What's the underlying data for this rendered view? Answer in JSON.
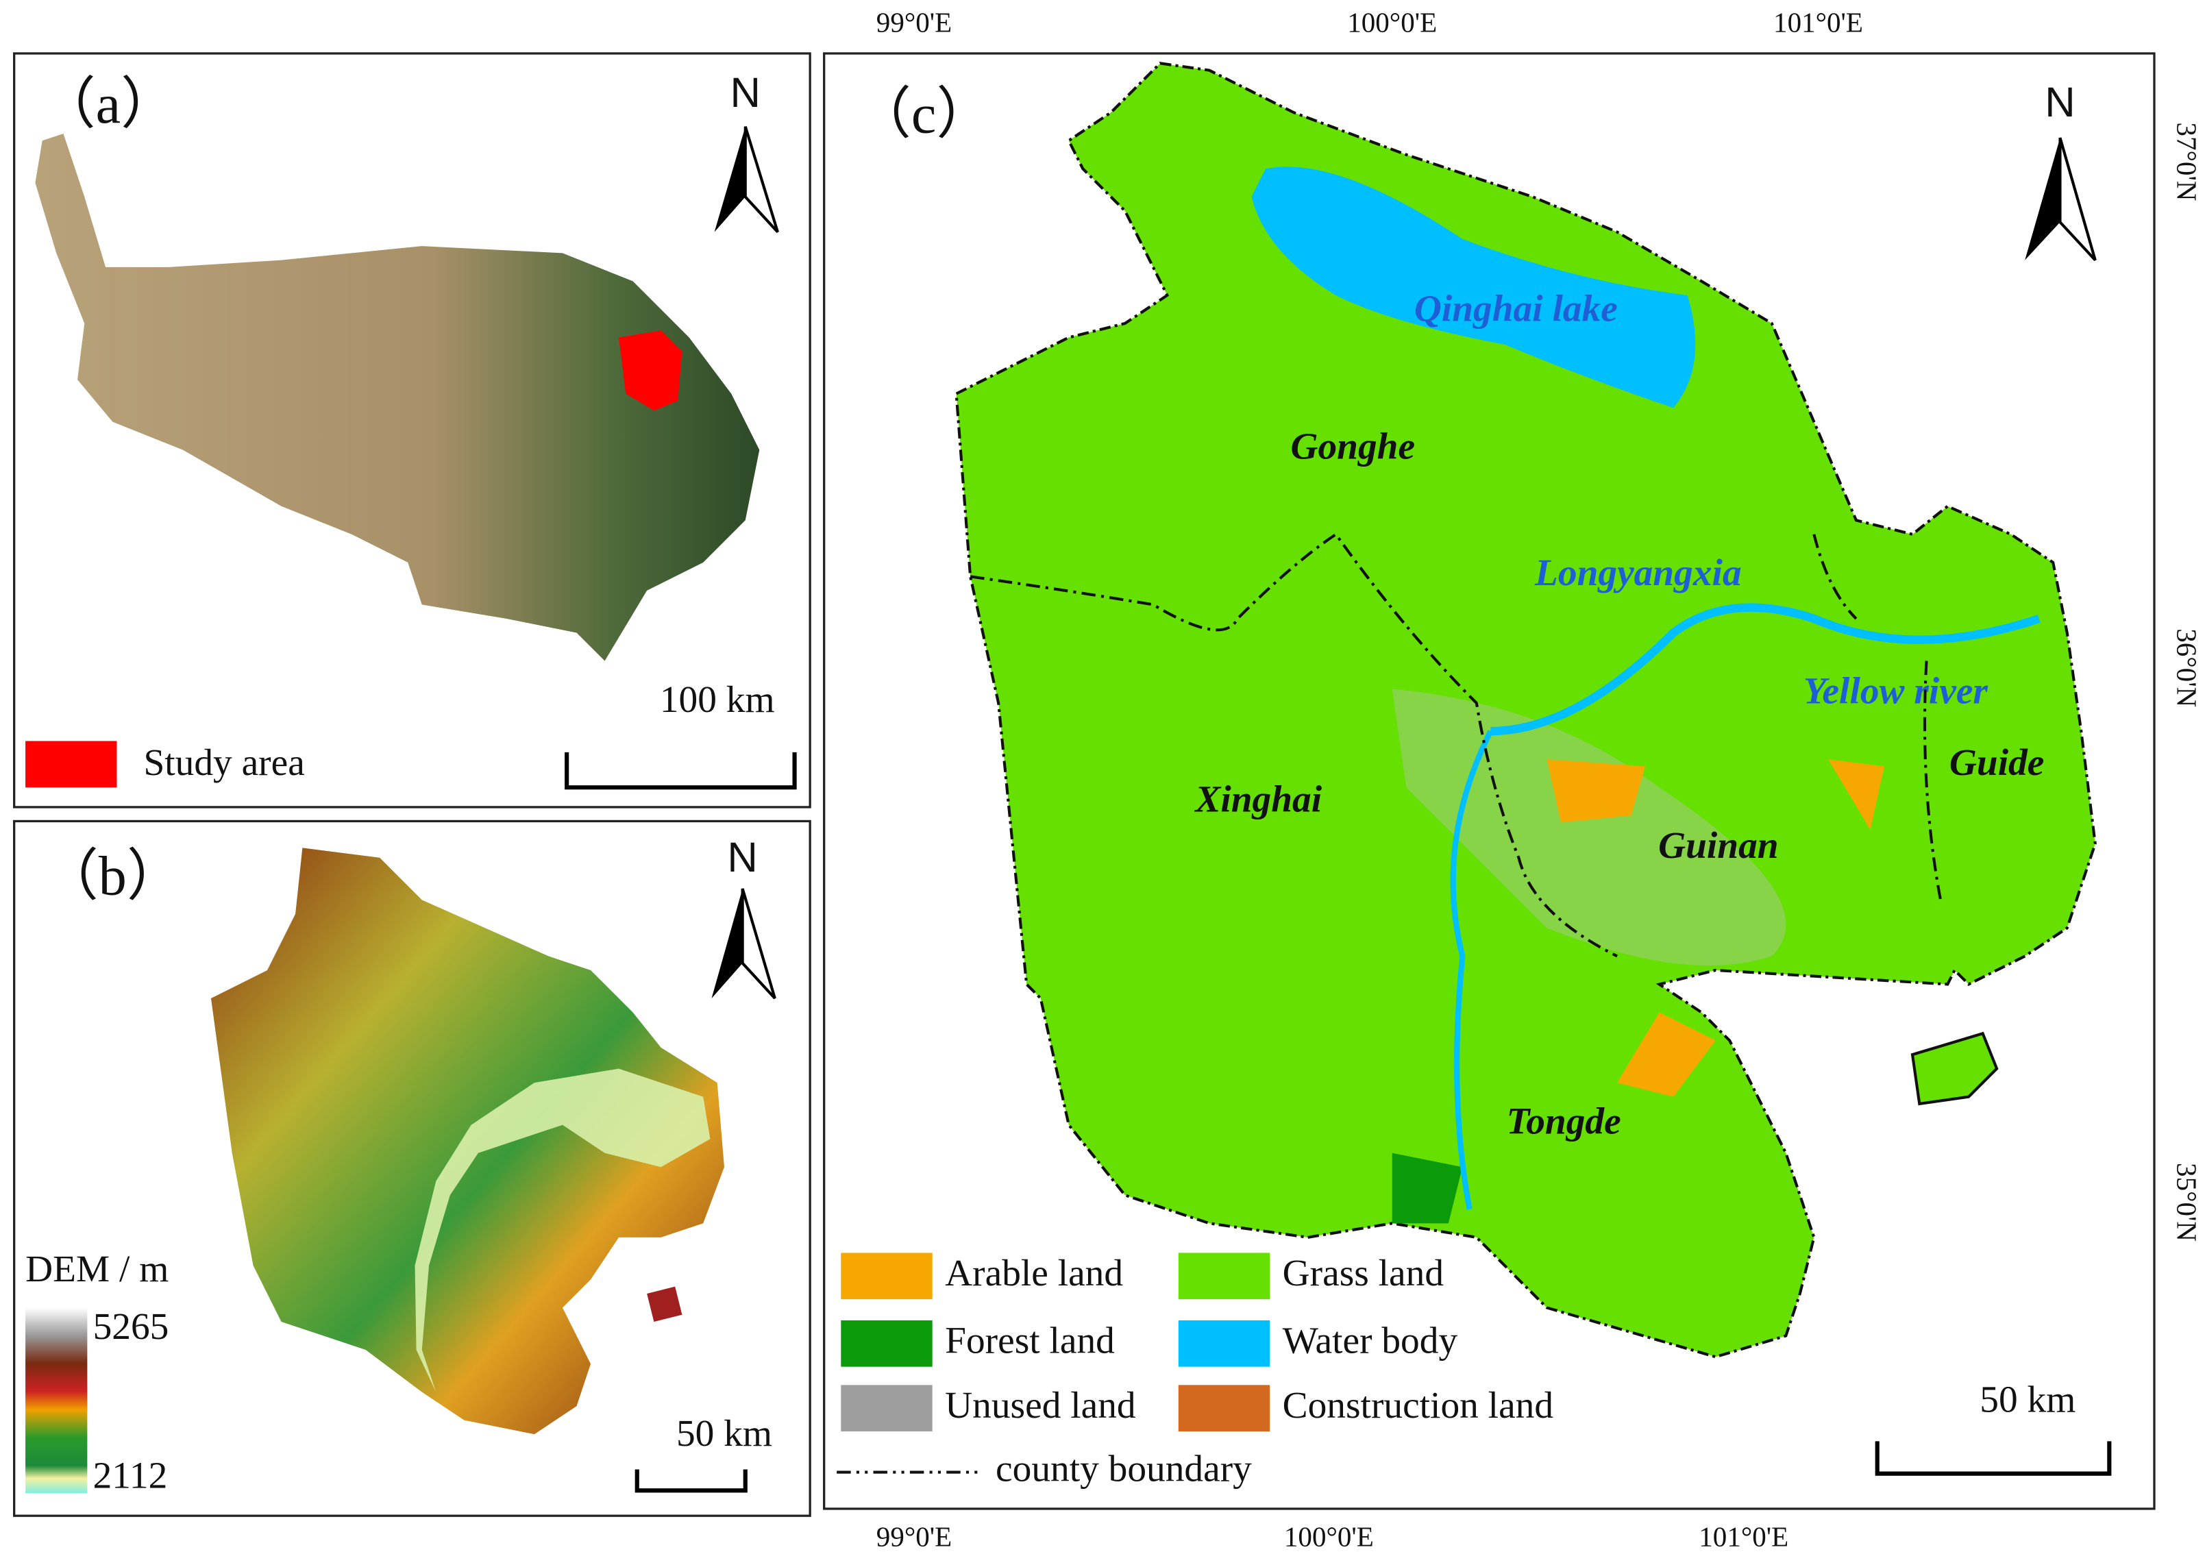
{
  "panel_a": {
    "label": "（a）",
    "north": "N",
    "scale_bar": "100 km",
    "legend": "Study area"
  },
  "panel_b": {
    "label": "（b）",
    "north": "N",
    "scale_bar": "50 km",
    "legend_title": "DEM / m",
    "dem_max": 5265,
    "dem_min": 2112
  },
  "panel_c": {
    "label": "（c）",
    "north": "N",
    "scale_bar": "50 km",
    "top_longitudes": [
      "99°0'E",
      "100°0'E",
      "101°0'E"
    ],
    "bottom_longitudes": [
      "99°0'E",
      "100°0'E",
      "101°0'E"
    ],
    "latitudes": [
      "37°0'N",
      "36°0'N",
      "35°0'N"
    ],
    "places": [
      {
        "name": "Qinghai lake"
      },
      {
        "name": "Gonghe"
      },
      {
        "name": "Longyangxia"
      },
      {
        "name": "Yellow river"
      },
      {
        "name": "Guide"
      },
      {
        "name": "Xinghai"
      },
      {
        "name": "Guinan"
      },
      {
        "name": "Tongde"
      }
    ],
    "legend": [
      {
        "name": "Arable land",
        "color": "#f7a800"
      },
      {
        "name": "Forest land",
        "color": "#0a9a0a"
      },
      {
        "name": "Unused land",
        "color": "#9e9e9e"
      },
      {
        "name": "Grass land",
        "color": "#66e000"
      },
      {
        "name": "Water body",
        "color": "#00bfff"
      },
      {
        "name": "Construction  land",
        "color": "#d2691e"
      }
    ],
    "boundary": "county boundary"
  }
}
